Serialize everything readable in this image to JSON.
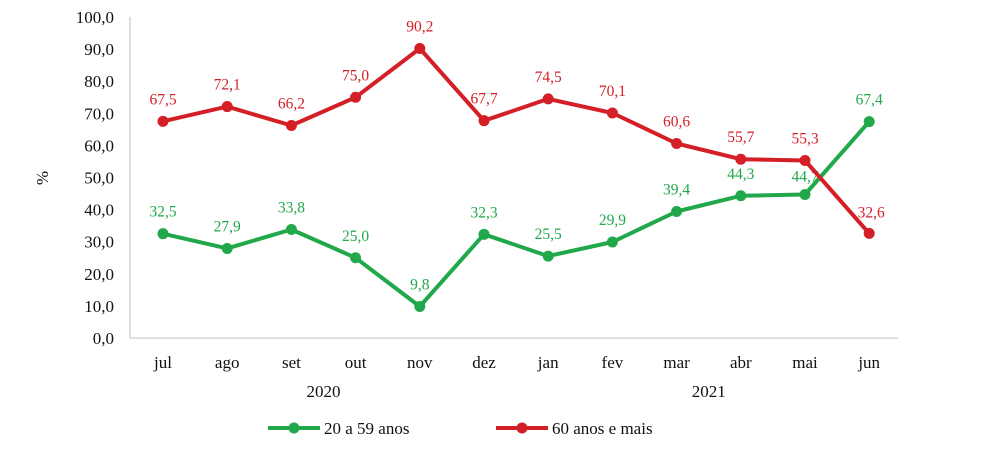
{
  "chart_data": {
    "type": "line",
    "ylabel": "%",
    "ylim": [
      0,
      100
    ],
    "ytick_labels": [
      "0,0",
      "10,0",
      "20,0",
      "30,0",
      "40,0",
      "50,0",
      "60,0",
      "70,0",
      "80,0",
      "90,0",
      "100,0"
    ],
    "ytick_values": [
      0,
      10,
      20,
      30,
      40,
      50,
      60,
      70,
      80,
      90,
      100
    ],
    "categories": [
      "jul",
      "ago",
      "set",
      "out",
      "nov",
      "dez",
      "jan",
      "fev",
      "mar",
      "abr",
      "mai",
      "jun"
    ],
    "year_groups": [
      {
        "label": "2020",
        "categories": [
          "jul",
          "ago",
          "set",
          "out",
          "nov",
          "dez"
        ]
      },
      {
        "label": "2021",
        "categories": [
          "jan",
          "fev",
          "mar",
          "abr",
          "mai",
          "jun"
        ]
      }
    ],
    "series": [
      {
        "name": "20 a 59 anos",
        "color": "#21a84a",
        "values": [
          32.5,
          27.9,
          33.8,
          25.0,
          9.8,
          32.3,
          25.5,
          29.9,
          39.4,
          44.3,
          44.7,
          67.4
        ],
        "labels": [
          "32,5",
          "27,9",
          "33,8",
          "25,0",
          "9,8",
          "32,3",
          "25,5",
          "29,9",
          "39,4",
          "44,3",
          "44,7",
          "67,4"
        ]
      },
      {
        "name": "60 anos e mais",
        "color": "#d41f26",
        "values": [
          67.5,
          72.1,
          66.2,
          75.0,
          90.2,
          67.7,
          74.5,
          70.1,
          60.6,
          55.7,
          55.3,
          32.6
        ],
        "labels": [
          "67,5",
          "72,1",
          "66,2",
          "75,0",
          "90,2",
          "67,7",
          "74,5",
          "70,1",
          "60,6",
          "55,7",
          "55,3",
          "32,6"
        ]
      }
    ],
    "legend_position": "bottom",
    "grid": false
  }
}
